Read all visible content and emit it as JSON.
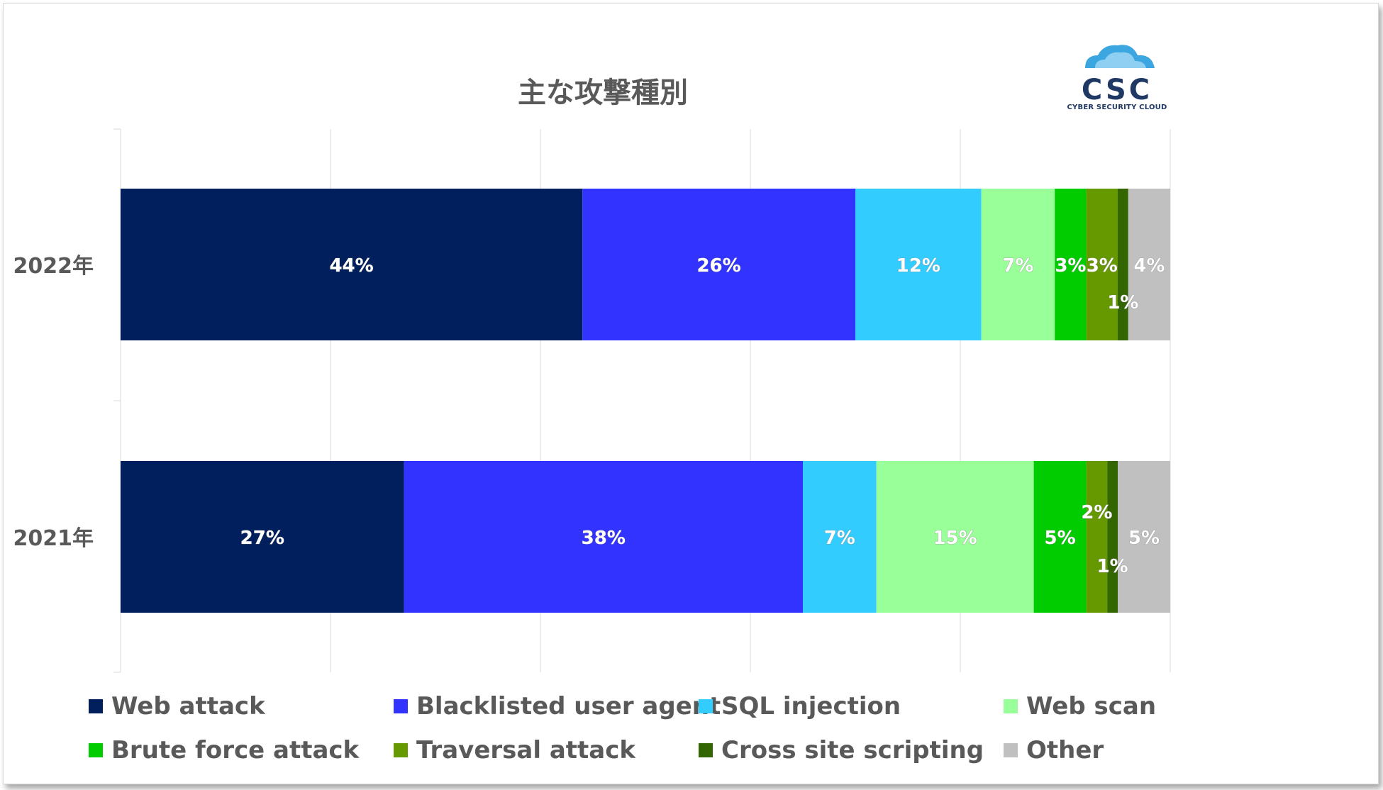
{
  "chart_data": {
    "type": "bar",
    "orientation": "horizontal",
    "stacked": true,
    "title": "主な攻撃種別",
    "categories": [
      "2022年",
      "2021年"
    ],
    "xlim": [
      0,
      100
    ],
    "grid": true,
    "legend_position": "bottom",
    "series": [
      {
        "name": "Web attack",
        "color": "#001F5C",
        "values": [
          44,
          27
        ],
        "labels": [
          "44%",
          "27%"
        ]
      },
      {
        "name": "Blacklisted user agent",
        "color": "#3333FF",
        "values": [
          26,
          38
        ],
        "labels": [
          "26%",
          "38%"
        ]
      },
      {
        "name": "SQL injection",
        "color": "#33CCFF",
        "values": [
          12,
          7
        ],
        "labels": [
          "12%",
          "7%"
        ]
      },
      {
        "name": "Web scan",
        "color": "#99FF99",
        "values": [
          7,
          15
        ],
        "labels": [
          "7%",
          "15%"
        ]
      },
      {
        "name": "Brute force attack",
        "color": "#00CC00",
        "values": [
          3,
          5
        ],
        "labels": [
          "3%",
          "5%"
        ]
      },
      {
        "name": "Traversal attack",
        "color": "#669900",
        "values": [
          3,
          2
        ],
        "labels": [
          "3%",
          "2%"
        ]
      },
      {
        "name": "Cross site scripting",
        "color": "#336600",
        "values": [
          1,
          1
        ],
        "labels": [
          "1%",
          "1%"
        ]
      },
      {
        "name": "Other",
        "color": "#C0C0C0",
        "values": [
          4,
          5
        ],
        "labels": [
          "4%",
          "5%"
        ]
      }
    ]
  },
  "logo": {
    "text": "CSC",
    "caption": "CYBER SECURITY CLOUD"
  }
}
